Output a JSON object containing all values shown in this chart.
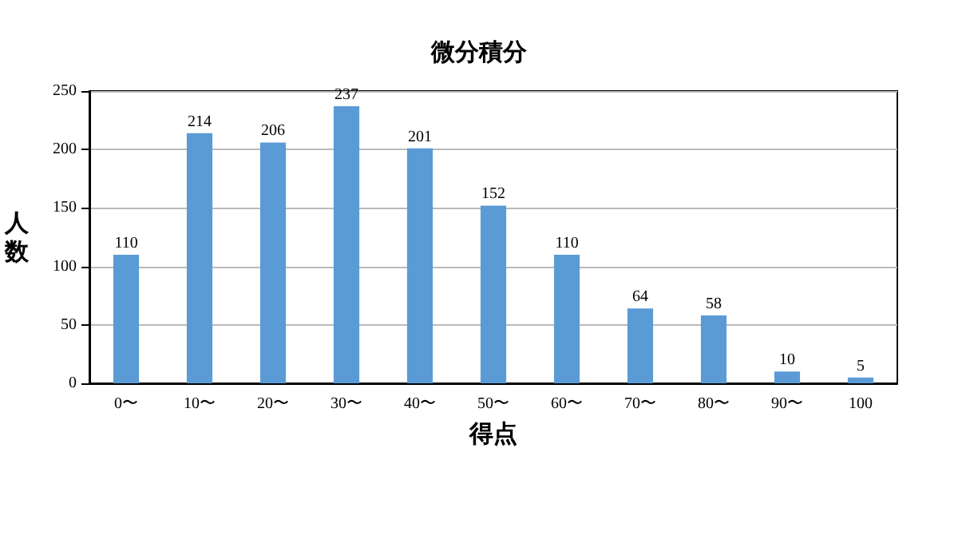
{
  "chart_data": {
    "type": "bar",
    "title": "微分積分",
    "xlabel": "得点",
    "ylabel": "人数",
    "categories": [
      "0〜",
      "10〜",
      "20〜",
      "30〜",
      "40〜",
      "50〜",
      "60〜",
      "70〜",
      "80〜",
      "90〜",
      "100"
    ],
    "values": [
      110,
      214,
      206,
      237,
      201,
      152,
      110,
      64,
      58,
      10,
      5
    ],
    "color": "#5b9bd5",
    "ylim": [
      0,
      250
    ],
    "yticks": [
      0,
      50,
      100,
      150,
      200,
      250
    ],
    "grid": "y",
    "data_labels": true
  }
}
